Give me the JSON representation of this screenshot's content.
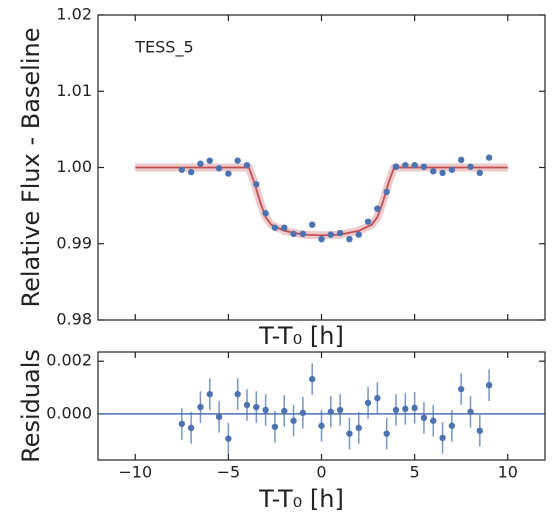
{
  "chart_data": [
    {
      "type": "scatter",
      "annotation": "TESS_5",
      "xlabel": "T-T₀ [h]",
      "ylabel": "Relative Flux - Baseline",
      "xlim": [
        -12,
        12
      ],
      "ylim": [
        0.98,
        1.02
      ],
      "xticks": [
        -10,
        -5,
        0,
        5,
        10
      ],
      "yticks": [
        0.98,
        0.99,
        {
          "value": 1,
          "label": "1.00"
        },
        1.01,
        1.02
      ],
      "color": "#4c72b0",
      "x": [
        -7.5,
        -7,
        -6.5,
        -6,
        -5.5,
        -5,
        -4.5,
        -4,
        -3.5,
        -3,
        -2.5,
        -2,
        -1.5,
        -1,
        -0.5,
        0,
        0.5,
        1,
        1.5,
        2,
        2.5,
        3,
        3.5,
        4,
        4.5,
        5,
        5.5,
        6,
        6.5,
        7,
        7.5,
        8,
        8.5,
        9
      ],
      "values": [
        0.9997,
        0.9994,
        1.0005,
        1.0009,
        0.9999,
        0.9992,
        1.0009,
        1.0003,
        0.9978,
        0.994,
        0.9921,
        0.9921,
        0.9913,
        0.9913,
        0.9925,
        0.9906,
        0.9912,
        0.9914,
        0.9906,
        0.9912,
        0.9929,
        0.9946,
        0.9968,
        1.0001,
        1.0003,
        1.0003,
        1.0001,
        0.9995,
        0.9993,
        0.9997,
        1.001,
        1.0001,
        0.9993,
        1.0013
      ],
      "errors": [
        0.0003,
        0.0003,
        0.0003,
        0.0003,
        0.0003,
        0.0003,
        0.0003,
        0.0003,
        0.0003,
        0.0003,
        0.0003,
        0.0003,
        0.0003,
        0.0003,
        0.0003,
        0.0003,
        0.0003,
        0.0003,
        0.0003,
        0.0003,
        0.0003,
        0.0003,
        0.0003,
        0.0003,
        0.0003,
        0.0003,
        0.0003,
        0.0003,
        0.0003,
        0.0003,
        0.0003,
        0.0003,
        0.0003,
        0.0003
      ],
      "model": {
        "color": "#c44e52",
        "x": [
          -10,
          -3.9,
          -3.6,
          -3.3,
          -3.0,
          -2.7,
          -2,
          -1,
          0,
          1,
          2,
          2.7,
          3.0,
          3.3,
          3.6,
          3.9,
          10
        ],
        "values": [
          1,
          1,
          0.998,
          0.9955,
          0.9935,
          0.9925,
          0.9917,
          0.9912,
          0.9911,
          0.9912,
          0.9917,
          0.9925,
          0.9935,
          0.9955,
          0.998,
          1,
          1
        ]
      }
    },
    {
      "type": "scatter",
      "xlabel": "T-T₀ [h]",
      "ylabel": "Residuals",
      "xlim": [
        -12,
        12
      ],
      "ylim": [
        -0.00175,
        0.00235
      ],
      "xticks": [
        {
          "value": -10,
          "label": "−10"
        },
        {
          "value": -5,
          "label": "−5"
        },
        0,
        5,
        10
      ],
      "yticks": [
        {
          "value": 0,
          "label": "0.000"
        },
        {
          "value": 0.002,
          "label": "0.002"
        }
      ],
      "color": "#4c72b0",
      "zero_line": true,
      "x": [
        -7.5,
        -7,
        -6.5,
        -6,
        -5.5,
        -5,
        -4.5,
        -4,
        -3.5,
        -3,
        -2.5,
        -2,
        -1.5,
        -1,
        -0.5,
        0,
        0.5,
        1,
        1.5,
        2,
        2.5,
        3,
        3.5,
        4,
        4.5,
        5,
        5.5,
        6,
        6.5,
        7,
        7.5,
        8,
        8.5,
        9
      ],
      "values": [
        -0.00038,
        -0.00053,
        0.00026,
        0.00075,
        -0.00011,
        -0.00094,
        0.00075,
        0.00034,
        0.00026,
        0.00015,
        -0.00049,
        0.00011,
        -0.00026,
        4e-05,
        0.00132,
        -0.00045,
        8e-05,
        0.00015,
        -0.00075,
        -0.00053,
        0.00042,
        0.0006,
        -0.00075,
        0.00015,
        0.00019,
        0.00023,
        -0.00015,
        -0.00026,
        -0.00091,
        -0.00045,
        0.00094,
        8e-05,
        -0.00064,
        0.00109
      ],
      "errors": [
        0.0006,
        0.0006,
        0.0006,
        0.0006,
        0.0006,
        0.0006,
        0.0006,
        0.0006,
        0.0006,
        0.0006,
        0.0006,
        0.0006,
        0.0006,
        0.0006,
        0.0006,
        0.0006,
        0.0006,
        0.0006,
        0.0006,
        0.0006,
        0.0006,
        0.0006,
        0.0006,
        0.0006,
        0.0006,
        0.0006,
        0.0006,
        0.0006,
        0.0006,
        0.0006,
        0.0006,
        0.0006,
        0.0006,
        0.0006
      ]
    }
  ]
}
